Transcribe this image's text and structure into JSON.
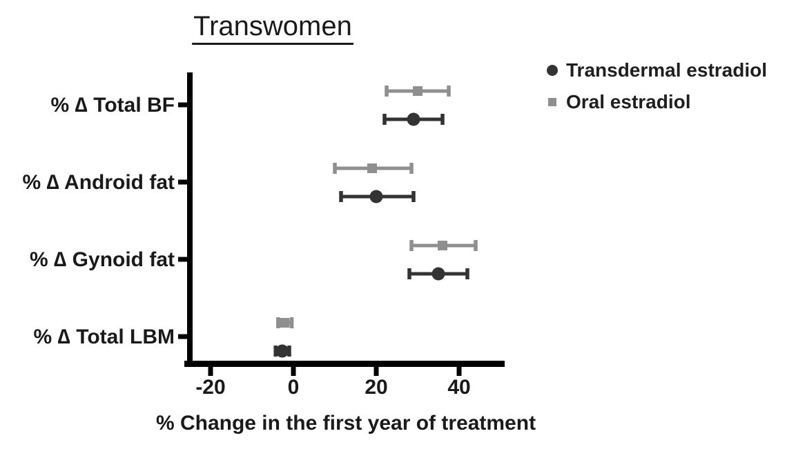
{
  "chart_data": {
    "type": "scatter",
    "subtype": "horizontal dot plot with error bars (forest-style)",
    "title": "Transwomen",
    "xlabel": "% Change in the first year of treatment",
    "ylabel": "",
    "categories": [
      "% ∆ Total BF",
      "% ∆ Android fat",
      "% ∆ Gynoid fat",
      "% ∆ Total LBM"
    ],
    "x_tick_labels": [
      "-20",
      "0",
      "20",
      "40"
    ],
    "x_tick_values": [
      -20,
      0,
      20,
      40
    ],
    "xlim": [
      -26,
      51
    ],
    "grid": false,
    "legend_position": "top-right",
    "series": [
      {
        "name": "Transdermal estradiol",
        "marker": "circle",
        "color": "#333333",
        "values": [
          29,
          20,
          35,
          -2.7
        ],
        "error_low": [
          22,
          11.5,
          28,
          -4.3
        ],
        "error_high": [
          36,
          29,
          42,
          -1.0
        ]
      },
      {
        "name": "Oral estradiol",
        "marker": "square",
        "color": "#8f8f8f",
        "values": [
          30,
          19,
          36,
          -2.1
        ],
        "error_low": [
          22.5,
          10,
          28.5,
          -3.7
        ],
        "error_high": [
          37.5,
          28.5,
          44,
          -0.4
        ]
      }
    ]
  }
}
